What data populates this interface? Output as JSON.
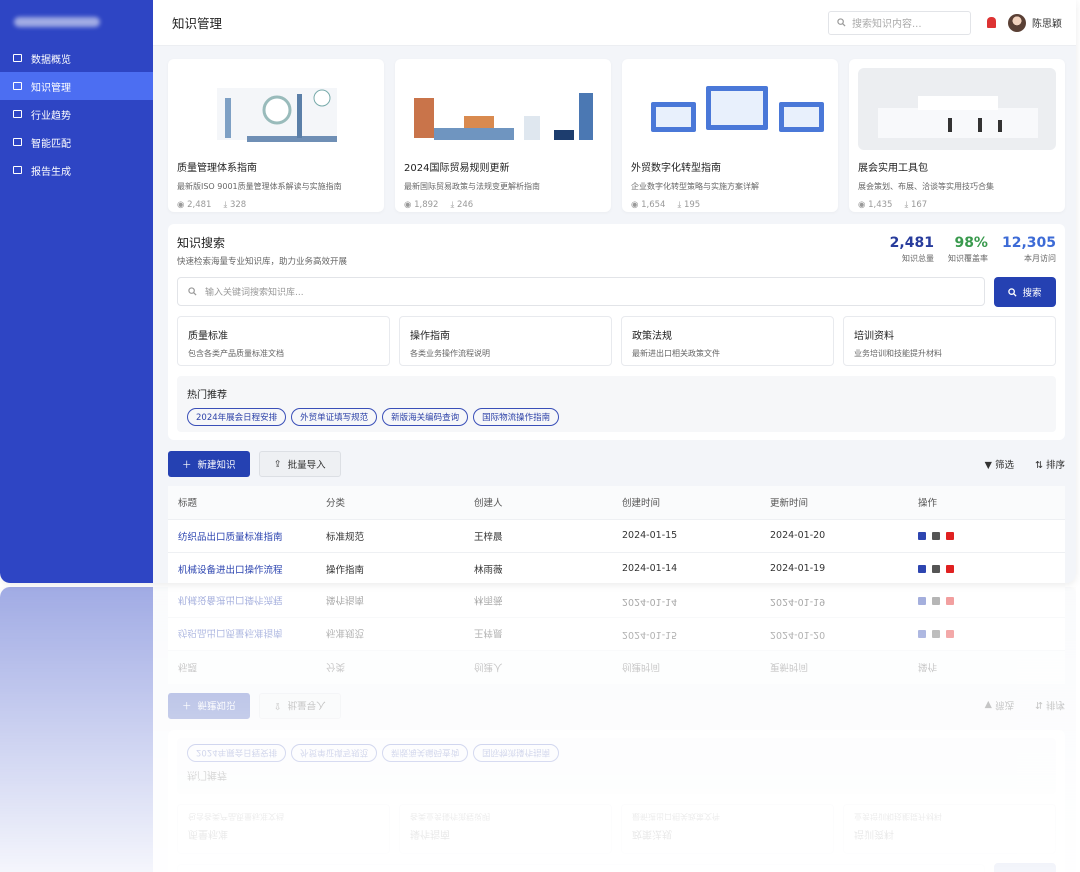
{
  "header": {
    "title": "知识管理",
    "search_placeholder": "搜索知识内容...",
    "user": "陈思颖"
  },
  "sidebar": {
    "menu": [
      "数据概览",
      "知识管理",
      "行业趋势",
      "智能匹配",
      "报告生成"
    ],
    "active": 1
  },
  "cards": [
    {
      "title": "质量管理体系指南",
      "desc": "最新版ISO 9001质量管理体系解读与实施指南",
      "views": "2,481",
      "downloads": "328"
    },
    {
      "title": "2024国际贸易规则更新",
      "desc": "最新国际贸易政策与法规变更解析指南",
      "views": "1,892",
      "downloads": "246"
    },
    {
      "title": "外贸数字化转型指南",
      "desc": "企业数字化转型策略与实施方案详解",
      "views": "1,654",
      "downloads": "195"
    },
    {
      "title": "展会实用工具包",
      "desc": "展会策划、布展、洽谈等实用技巧合集",
      "views": "1,435",
      "downloads": "167"
    }
  ],
  "search": {
    "title": "知识搜索",
    "subtitle": "快速检索海量专业知识库，助力业务高效开展",
    "stats": [
      {
        "value": "2,481",
        "label": "知识总量",
        "color": "#283c9c"
      },
      {
        "value": "98%",
        "label": "知识覆盖率",
        "color": "#3a9a4e"
      },
      {
        "value": "12,305",
        "label": "本月访问",
        "color": "#3d6bd6"
      }
    ],
    "placeholder": "输入关键词搜索知识库...",
    "button": "搜索",
    "categories": [
      {
        "name": "质量标准",
        "desc": "包含各类产品质量标准文档"
      },
      {
        "name": "操作指南",
        "desc": "各类业务操作流程说明"
      },
      {
        "name": "政策法规",
        "desc": "最新进出口相关政策文件"
      },
      {
        "name": "培训资料",
        "desc": "业务培训和技能提升材料"
      }
    ],
    "hot_title": "热门推荐",
    "hot_tags": [
      "2024年展会日程安排",
      "外贸单证填写规范",
      "新版海关编码查询",
      "国际物流操作指南"
    ]
  },
  "toolbar": {
    "new": "新建知识",
    "import": "批量导入",
    "filter": "筛选",
    "sort": "排序"
  },
  "table": {
    "headers": [
      "标题",
      "分类",
      "创建人",
      "创建时间",
      "更新时间",
      "操作"
    ],
    "rows": [
      [
        "纺织品出口质量标准指南",
        "标准规范",
        "王梓晨",
        "2024-01-15",
        "2024-01-20"
      ],
      [
        "机械设备进出口操作流程",
        "操作指南",
        "林雨薇",
        "2024-01-14",
        "2024-01-19"
      ]
    ]
  }
}
